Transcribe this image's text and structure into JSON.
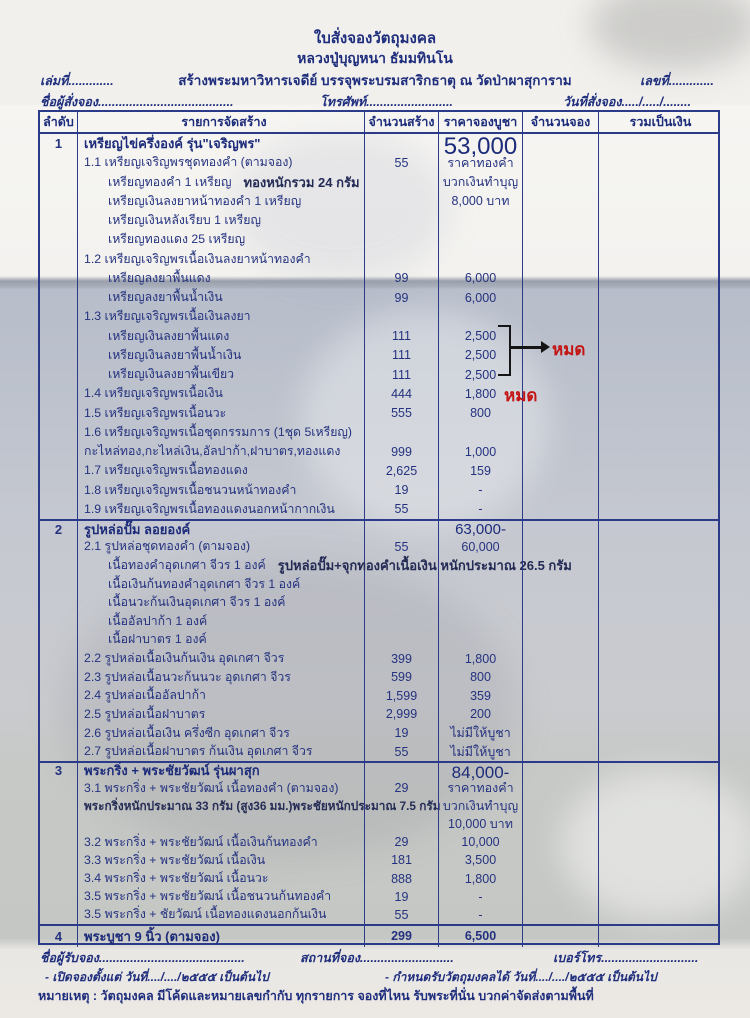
{
  "header": {
    "title1": "ใบสั่งจองวัตถุมงคล",
    "title2": "หลวงปู่บุญหนา ธัมมทินโน",
    "book_no": "เล่มที่.............",
    "subtitle": "สร้างพระมหาวิหารเจดีย์ บรรจุพระบรมสาริกธาตุ ณ วัดป่าผาสุการาม",
    "doc_no": "เลขที่.............",
    "orderer": "ชื่อผู้สั่งจอง.......................................",
    "phone": "โทรศัพท์.........................",
    "order_date": "วันที่สั่งจอง...../...../........"
  },
  "table": {
    "columns": [
      "ลำดับ",
      "รายการจัดสร้าง",
      "จำนวนสร้าง",
      "ราคาจองบูชา",
      "จำนวนจอง",
      "รวมเป็นเงิน"
    ],
    "rows": [
      {
        "group": 1,
        "kind": "sec",
        "no": "1",
        "name": "เหรียญไข่ครึ่งองค์ รุ่น\"เจริญพร\"",
        "price": "53,000",
        "emph": "xl"
      },
      {
        "group": 1,
        "kind": "item",
        "name": "1.1  เหรียญเจริญพรชุดทองคำ  (ตามจอง)",
        "qty": "55",
        "price": "ราคาทองคำ"
      },
      {
        "group": 1,
        "kind": "sub",
        "name": "เหรียญทองคำ 1 เหรียญ",
        "note": "ทองหนักรวม 24 กรัม",
        "price": "บวกเงินทำบุญ"
      },
      {
        "group": 1,
        "kind": "sub",
        "name": "เหรียญเงินลงยาหน้าทองคำ  1 เหรียญ",
        "price": "8,000 บาท"
      },
      {
        "group": 1,
        "kind": "sub",
        "name": "เหรียญเงินหลังเรียบ 1 เหรียญ"
      },
      {
        "group": 1,
        "kind": "sub",
        "name": "เหรียญทองแดง 25 เหรียญ"
      },
      {
        "group": 1,
        "kind": "item",
        "name": "1.2  เหรียญเจริญพรเนื้อเงินลงยาหน้าทองคำ"
      },
      {
        "group": 1,
        "kind": "sub",
        "name": "เหรียญลงยาพื้นแดง",
        "qty": "99",
        "price": "6,000"
      },
      {
        "group": 1,
        "kind": "sub",
        "name": "เหรียญลงยาพื้นน้ำเงิน",
        "qty": "99",
        "price": "6,000"
      },
      {
        "group": 1,
        "kind": "item",
        "name": "1.3  เหรียญเจริญพรเนื้อเงินลงยา"
      },
      {
        "group": 1,
        "kind": "sub",
        "name": "เหรียญเงินลงยาพื้นแดง",
        "qty": "111",
        "price": "2,500"
      },
      {
        "group": 1,
        "kind": "sub",
        "name": "เหรียญเงินลงยาพื้นน้ำเงิน",
        "qty": "111",
        "price": "2,500"
      },
      {
        "group": 1,
        "kind": "sub",
        "name": "เหรียญเงินลงยาพื้นเขียว",
        "qty": "111",
        "price": "2,500"
      },
      {
        "group": 1,
        "kind": "item",
        "name": "1.4  เหรียญเจริญพรเนื้อเงิน",
        "qty": "444",
        "price": "1,800"
      },
      {
        "group": 1,
        "kind": "item",
        "name": "1.5  เหรียญเจริญพรเนื้อนวะ",
        "qty": "555",
        "price": "800"
      },
      {
        "group": 1,
        "kind": "item",
        "name": "1.6  เหรียญเจริญพรเนื้อชุดกรรมการ (1ชุด 5เหรียญ)"
      },
      {
        "group": 1,
        "kind": "item",
        "name": "กะไหล่ทอง,กะไหล่เงิน,อัลปาก้า,ฝาบาตร,ทองแดง",
        "qty": "999",
        "price": "1,000"
      },
      {
        "group": 1,
        "kind": "item",
        "name": "1.7  เหรียญเจริญพรเนื้อทองแดง",
        "qty": "2,625",
        "price": "159"
      },
      {
        "group": 1,
        "kind": "item",
        "name": "1.8  เหรียญเจริญพรเนื้อชนวนหน้าทองคำ",
        "qty": "19",
        "price": "-"
      },
      {
        "group": 1,
        "kind": "item",
        "name": "1.9  เหรียญเจริญพรเนื้อทองแดงนอกหน้ากากเงิน",
        "qty": "55",
        "price": "-"
      },
      {
        "group": 2,
        "kind": "sec",
        "no": "2",
        "name": "รูปหล่อปั๊ม ลอยองค์",
        "price": "63,000-",
        "emph": "md"
      },
      {
        "group": 2,
        "kind": "item",
        "name": "2.1  รูปหล่อชุดทองคำ  (ตามจอง)",
        "qty": "55",
        "price": "60,000"
      },
      {
        "group": 2,
        "kind": "sub",
        "name": "เนื้อทองคำอุดเกศา จีวร 1 องค์",
        "note": "รูปหล่อปั๊ม+จุกทองคำเนื้อเงิน หนักประมาณ 26.5 กรัม"
      },
      {
        "group": 2,
        "kind": "sub",
        "name": "เนื้อเงินก้นทองคำอุดเกศา จีวร 1 องค์"
      },
      {
        "group": 2,
        "kind": "sub",
        "name": "เนื้อนวะก้นเงินอุดเกศา จีวร 1 องค์"
      },
      {
        "group": 2,
        "kind": "sub",
        "name": "เนื้ออัลปาก้า 1 องค์"
      },
      {
        "group": 2,
        "kind": "sub",
        "name": "เนื้อฝาบาตร 1 องค์"
      },
      {
        "group": 2,
        "kind": "item",
        "name": "2.2  รูปหล่อเนื้อเงินก้นเงิน อุดเกศา จีวร",
        "qty": "399",
        "price": "1,800"
      },
      {
        "group": 2,
        "kind": "item",
        "name": "2.3  รูปหล่อเนื้อนวะก้นนวะ อุดเกศา จีวร",
        "qty": "599",
        "price": "800"
      },
      {
        "group": 2,
        "kind": "item",
        "name": "2.4  รูปหล่อเนื้ออัลปาก้า",
        "qty": "1,599",
        "price": "359"
      },
      {
        "group": 2,
        "kind": "item",
        "name": "2.5  รูปหล่อเนื้อฝาบาตร",
        "qty": "2,999",
        "price": "200"
      },
      {
        "group": 2,
        "kind": "item",
        "name": "2.6  รูปหล่อเนื้อเงิน ครึ่งซีก อุดเกศา จีวร",
        "qty": "19",
        "price": "ไม่มีให้บูชา"
      },
      {
        "group": 2,
        "kind": "item",
        "name": "2.7  รูปหล่อเนื้อฝาบาตร ก้นเงิน อุดเกศา จีวร",
        "qty": "55",
        "price": "ไม่มีให้บูชา"
      },
      {
        "group": 3,
        "kind": "sec",
        "no": "3",
        "name": "พระกริ่ง + พระชัยวัฒน์ รุ่นผาสุก",
        "price": "84,000-",
        "emph": "lg"
      },
      {
        "group": 3,
        "kind": "item",
        "name": "3.1 พระกริ่ง + พระชัยวัฒน์ เนื้อทองคำ (ตามจอง)",
        "qty": "29",
        "price": "ราคาทองคำ"
      },
      {
        "group": 3,
        "kind": "note",
        "name": "พระกริ่งหนักประมาณ 33 กรัม (สูง36 มม.)พระชัยหนักประมาณ 7.5 กรัม",
        "price": "บวกเงินทำบุญ"
      },
      {
        "group": 3,
        "kind": "blank",
        "price": "10,000 บาท"
      },
      {
        "group": 3,
        "kind": "item",
        "name": "3.2 พระกริ่ง + พระชัยวัฒน์ เนื้อเงินก้นทองคำ",
        "qty": "29",
        "price": "10,000"
      },
      {
        "group": 3,
        "kind": "item",
        "name": "3.3 พระกริ่ง + พระชัยวัฒน์ เนื้อเงิน",
        "qty": "181",
        "price": "3,500"
      },
      {
        "group": 3,
        "kind": "item",
        "name": "3.4 พระกริ่ง + พระชัยวัฒน์ เนื้อนวะ",
        "qty": "888",
        "price": "1,800"
      },
      {
        "group": 3,
        "kind": "item",
        "name": "3.5 พระกริ่ง + พระชัยวัฒน์ เนื้อชนวนก้นทองคำ",
        "qty": "19",
        "price": "-"
      },
      {
        "group": 3,
        "kind": "item",
        "name": "3.5 พระกริ่ง + ชัยวัฒน์ เนื้อทองแดงนอกก้นเงิน",
        "qty": "55",
        "price": "-"
      },
      {
        "group": 4,
        "kind": "sec",
        "no": "4",
        "name": "พระบูชา 9 นิ้ว  (ตามจอง)",
        "qty": "299",
        "price": "6,500"
      }
    ]
  },
  "annotations": {
    "sold_out_bracket": "หมด",
    "sold_out_row14": "หมด"
  },
  "footer": {
    "receiver": "ชื่อผู้รับจอง..........................................",
    "place": "สถานที่จอง...........................",
    "tel": "เบอร์โทร............................",
    "open_date": "- เปิดจองตั้งแต่ วันที่..../..../๒๕๕๕ เป็นต้นไป",
    "receive_date": "- กำหนดรับวัตถุมงคลได้   วันที่..../..../๒๕๕๕ เป็นต้นไป",
    "remark": "หมายเหตุ : วัตถุมงคล มีโค้ดและหมายเลขกำกับ ทุกรายการ จองที่ไหน รับพระที่นั่น บวกค่าจัดส่งตามพื้นที่"
  },
  "colors": {
    "ink_navy": "#24327f",
    "table_border": "#2c3a8a",
    "sold_out_red": "#c41414"
  }
}
